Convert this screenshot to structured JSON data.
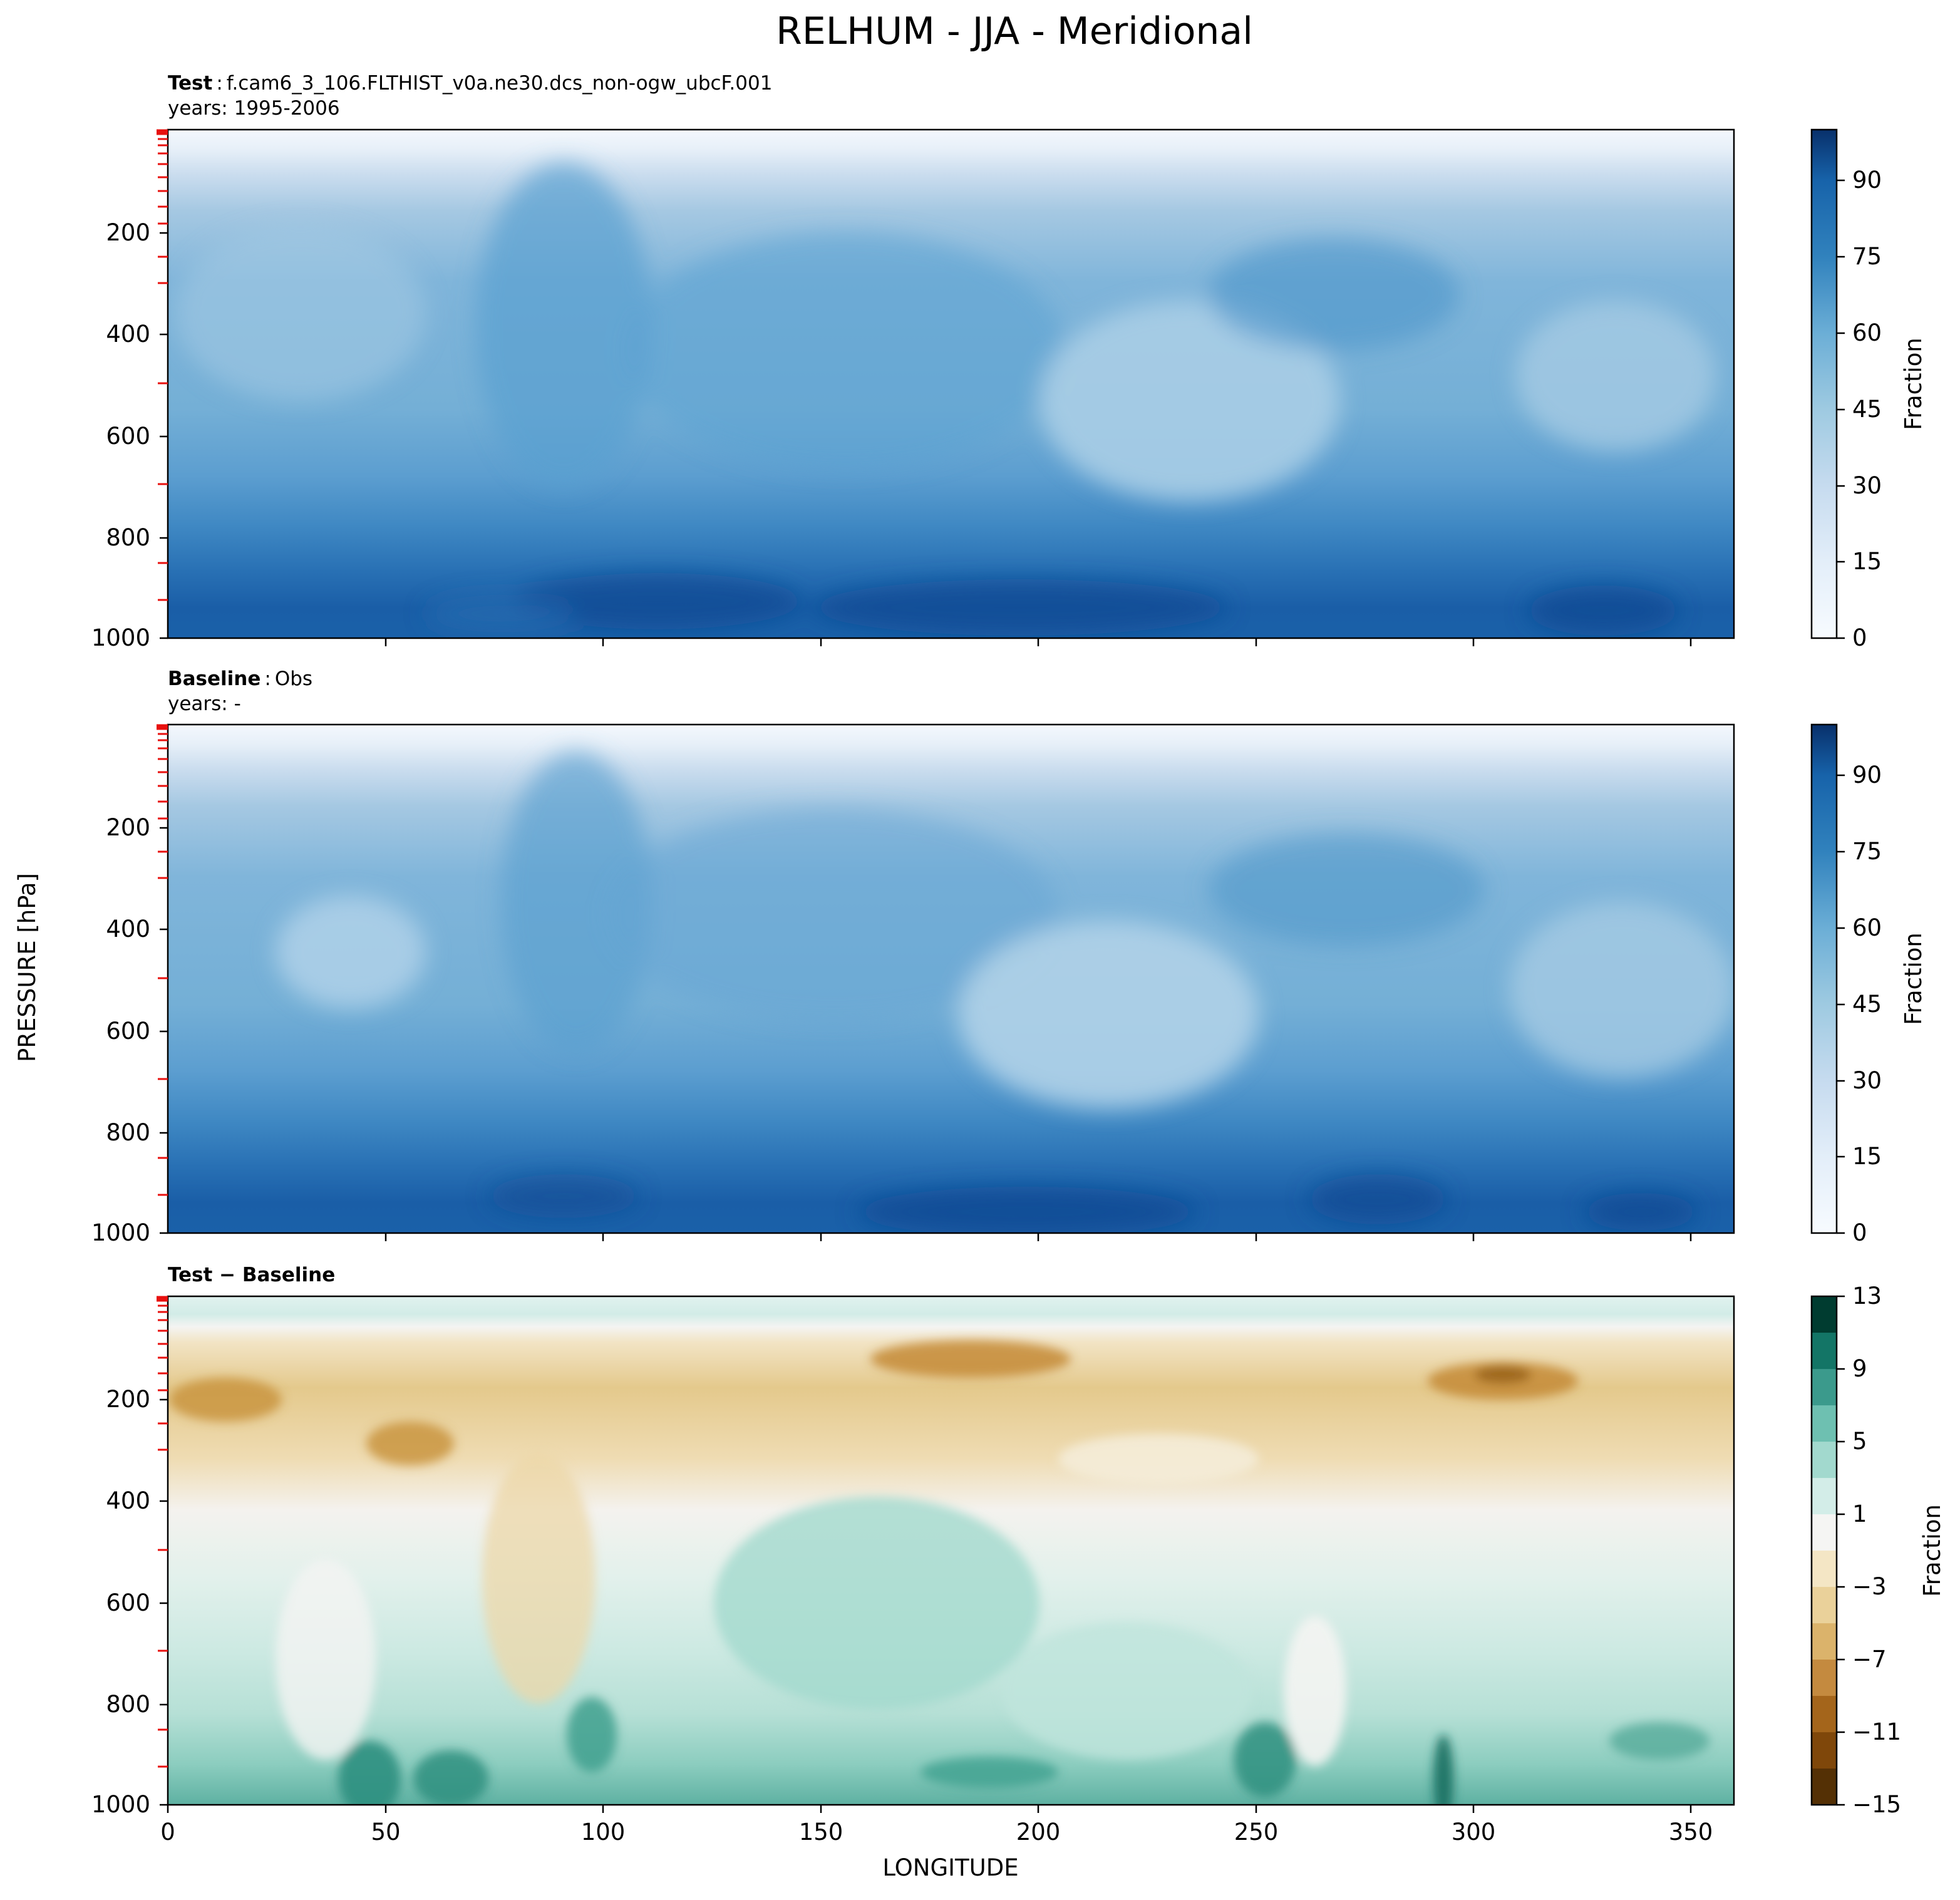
{
  "figure": {
    "suptitle": "RELHUM - JJA - Meridional",
    "ylabel": "PRESSURE [hPa]",
    "xlabel": "LONGITUDE"
  },
  "chart_data": [
    {
      "type": "heatmap",
      "panel": "test",
      "title_bold": "Test",
      "title_sep": ":",
      "title_rest": "f.cam6_3_106.FLTHIST_v0a.ne30.dcs_non-ogw_ubcF.001",
      "subtitle": "years: 1995-2006",
      "x_ticks": [],
      "y_ticks": [
        200,
        400,
        600,
        800,
        1000
      ],
      "ylim": [
        1000,
        0
      ],
      "xlim": [
        0,
        360
      ],
      "colorbar": {
        "label": "Fraction",
        "ticks": [
          0,
          15,
          30,
          45,
          60,
          75,
          90
        ],
        "range": [
          0,
          100
        ],
        "cmap": "Blues"
      },
      "field_mean_by_level": [
        {
          "p": 10,
          "v": 4
        },
        {
          "p": 60,
          "v": 12
        },
        {
          "p": 150,
          "v": 32
        },
        {
          "p": 250,
          "v": 50
        },
        {
          "p": 400,
          "v": 52
        },
        {
          "p": 600,
          "v": 52
        },
        {
          "p": 800,
          "v": 68
        },
        {
          "p": 950,
          "v": 85
        }
      ]
    },
    {
      "type": "heatmap",
      "panel": "baseline",
      "title_bold": "Baseline",
      "title_sep": ":",
      "title_rest": "Obs",
      "subtitle": "years: -",
      "x_ticks": [],
      "y_ticks": [
        200,
        400,
        600,
        800,
        1000
      ],
      "ylim": [
        1000,
        0
      ],
      "xlim": [
        0,
        360
      ],
      "colorbar": {
        "label": "Fraction",
        "ticks": [
          0,
          15,
          30,
          45,
          60,
          75,
          90
        ],
        "range": [
          0,
          100
        ],
        "cmap": "Blues"
      },
      "field_mean_by_level": [
        {
          "p": 10,
          "v": 4
        },
        {
          "p": 60,
          "v": 14
        },
        {
          "p": 150,
          "v": 36
        },
        {
          "p": 250,
          "v": 52
        },
        {
          "p": 400,
          "v": 50
        },
        {
          "p": 600,
          "v": 50
        },
        {
          "p": 800,
          "v": 66
        },
        {
          "p": 950,
          "v": 84
        }
      ]
    },
    {
      "type": "heatmap",
      "panel": "difference",
      "title_bold": "Test − Baseline",
      "subtitle": "",
      "x_ticks": [
        0,
        50,
        100,
        150,
        200,
        250,
        300,
        350
      ],
      "y_ticks": [
        200,
        400,
        600,
        800,
        1000
      ],
      "ylim": [
        1000,
        0
      ],
      "xlim": [
        0,
        360
      ],
      "colorbar": {
        "label": "Fraction",
        "ticks": [
          13,
          9,
          5,
          1,
          -3,
          -7,
          -11,
          -15
        ],
        "range": [
          -15,
          13
        ],
        "cmap": "BrBG"
      },
      "field_mean_by_level": [
        {
          "p": 30,
          "v": 2
        },
        {
          "p": 120,
          "v": -5
        },
        {
          "p": 250,
          "v": -3
        },
        {
          "p": 450,
          "v": 1
        },
        {
          "p": 650,
          "v": 2
        },
        {
          "p": 850,
          "v": 3
        },
        {
          "p": 980,
          "v": 6
        }
      ]
    }
  ]
}
